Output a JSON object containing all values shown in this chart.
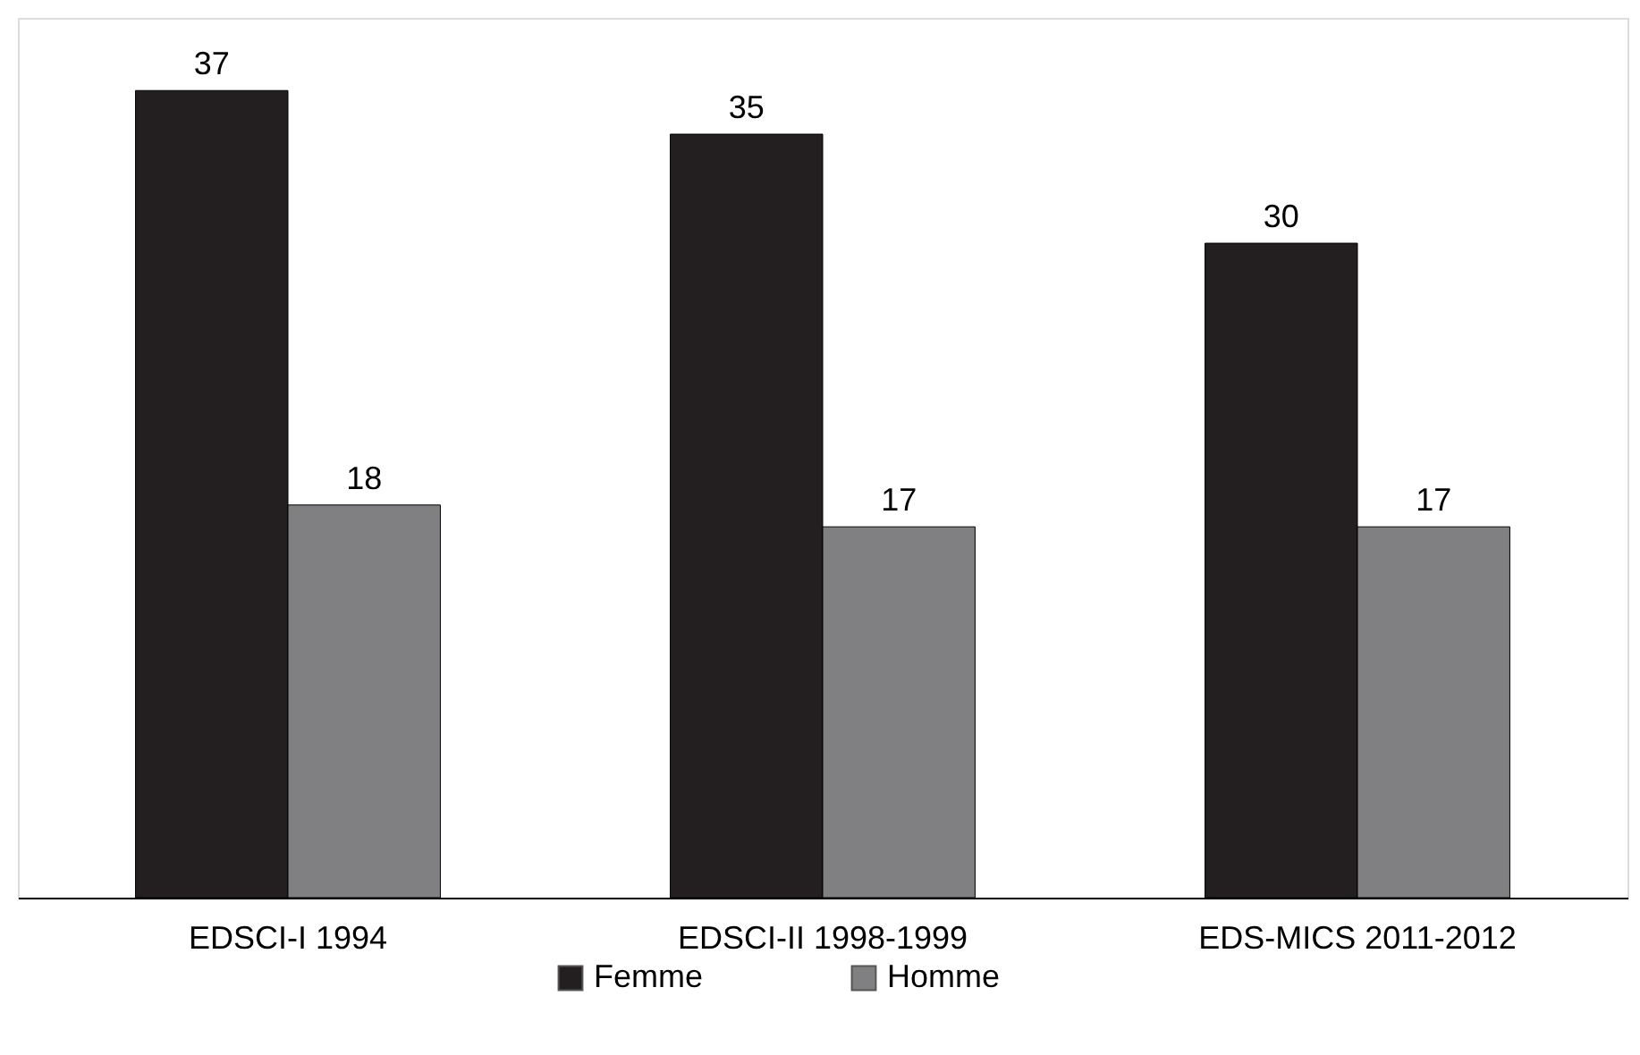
{
  "chart_data": {
    "type": "bar",
    "categories": [
      "EDSCI-I 1994",
      "EDSCI-II 1998-1999",
      "EDS-MICS 2011-2012"
    ],
    "series": [
      {
        "name": "Femme",
        "color": "#231f20",
        "values": [
          37,
          35,
          30
        ]
      },
      {
        "name": "Homme",
        "color": "#808083",
        "values": [
          18,
          17,
          17
        ]
      }
    ],
    "data_labels": true,
    "legend": "bottom"
  }
}
